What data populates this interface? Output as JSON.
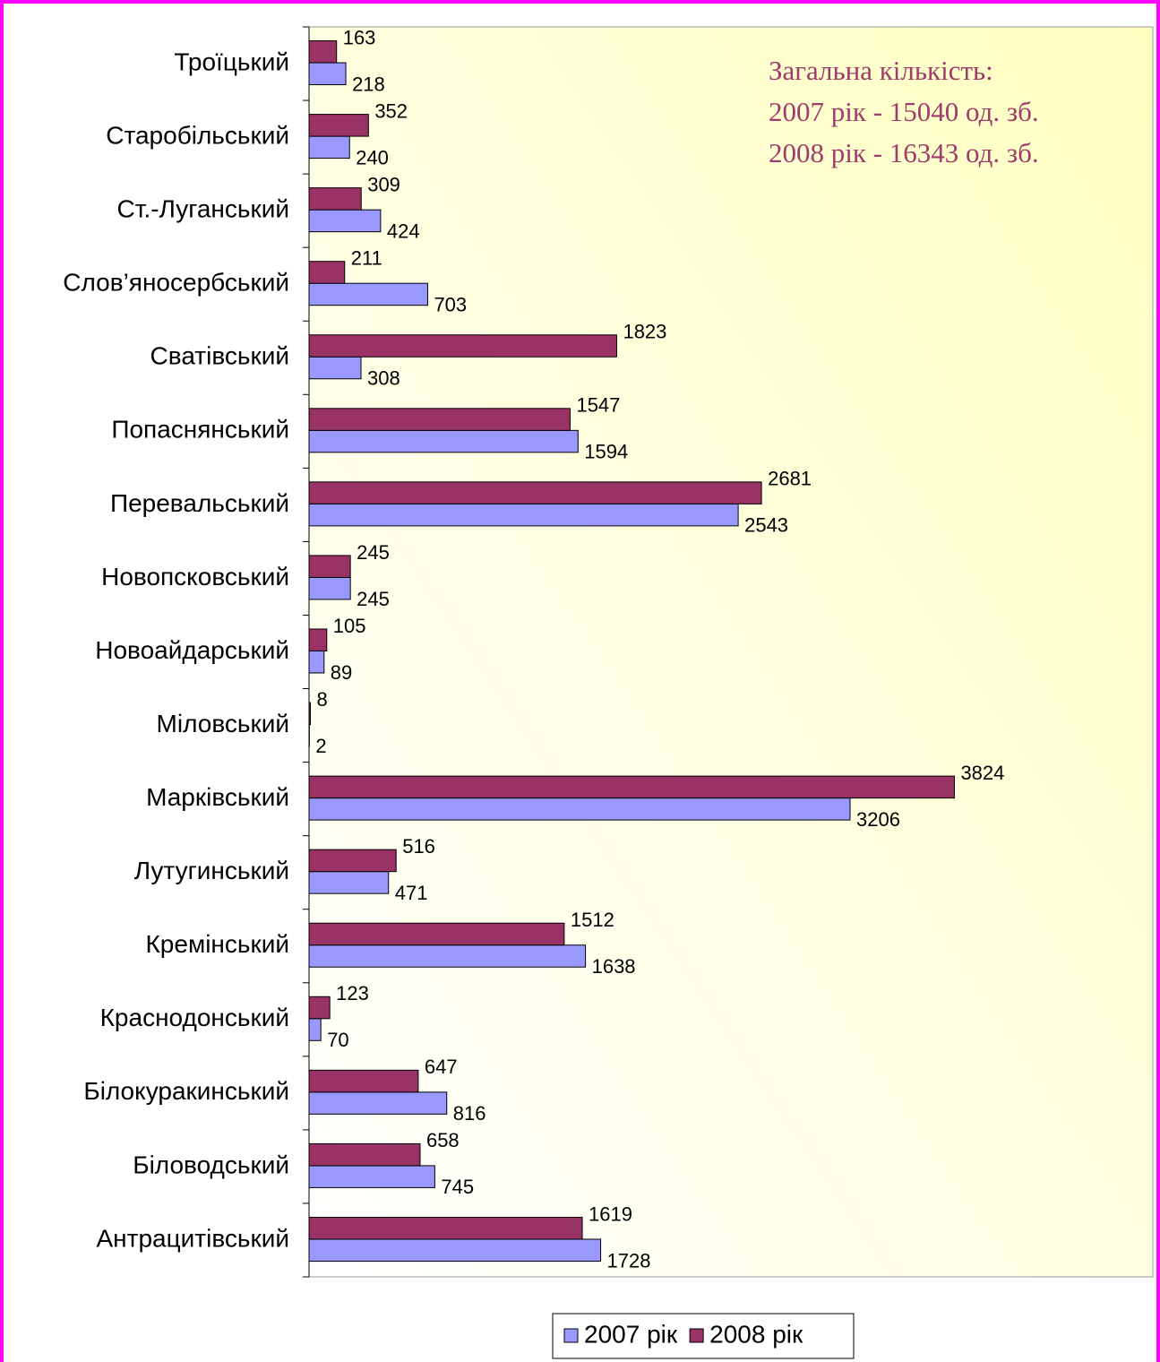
{
  "chart_data": {
    "type": "hbar",
    "annotations": [
      "Загальна кількість:",
      "2007 рік - 15040 од. зб.",
      "2008 рік - 16343 од. зб."
    ],
    "categories": [
      "Троїцький",
      "Старобільський",
      "Ст.-Луганський",
      "Слов’яносербський",
      "Сватівський",
      "Попаснянський",
      "Перевальський",
      "Новопсковський",
      "Новоайдарський",
      "Міловський",
      "Марківський",
      "Лутугинський",
      "Кремінський",
      "Краснодонський",
      "Білокуракинський",
      "Біловодський",
      "Антрацитівський"
    ],
    "series": [
      {
        "name": "2007 рік",
        "color": "#9999ff",
        "values": [
          218,
          240,
          424,
          703,
          308,
          1594,
          2543,
          245,
          89,
          2,
          3206,
          471,
          1638,
          70,
          816,
          745,
          1728
        ]
      },
      {
        "name": "2008 рік",
        "color": "#993366",
        "values": [
          163,
          352,
          309,
          211,
          1823,
          1547,
          2681,
          245,
          105,
          8,
          3824,
          516,
          1512,
          123,
          647,
          658,
          1619
        ]
      }
    ],
    "xlim": [
      0,
      5000
    ]
  }
}
